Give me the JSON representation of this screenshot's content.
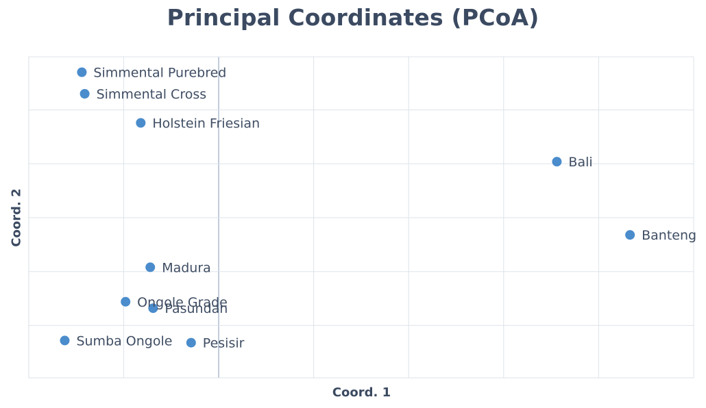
{
  "chart_data": {
    "type": "scatter",
    "title": "Principal Coordinates (PCoA)",
    "xlabel": "Coord. 1",
    "ylabel": "Coord. 2",
    "xlim": [
      -0.2,
      0.5
    ],
    "ylim": [
      -0.15,
      0.15
    ],
    "grid": true,
    "point_color": "#4a8ccc",
    "points": [
      {
        "label": "Simmental Purebred",
        "x": -0.144,
        "y": 0.135
      },
      {
        "label": "Simmental Cross",
        "x": -0.141,
        "y": 0.115
      },
      {
        "label": "Holstein Friesian",
        "x": -0.082,
        "y": 0.088
      },
      {
        "label": "Bali",
        "x": 0.356,
        "y": 0.052
      },
      {
        "label": "Banteng",
        "x": 0.433,
        "y": -0.016
      },
      {
        "label": "Madura",
        "x": -0.072,
        "y": -0.046
      },
      {
        "label": "Ongole Grade",
        "x": -0.098,
        "y": -0.078
      },
      {
        "label": "Pasundan",
        "x": -0.069,
        "y": -0.084
      },
      {
        "label": "Sumba Ongole",
        "x": -0.162,
        "y": -0.114
      },
      {
        "label": "Pesisir",
        "x": -0.029,
        "y": -0.116
      }
    ]
  }
}
